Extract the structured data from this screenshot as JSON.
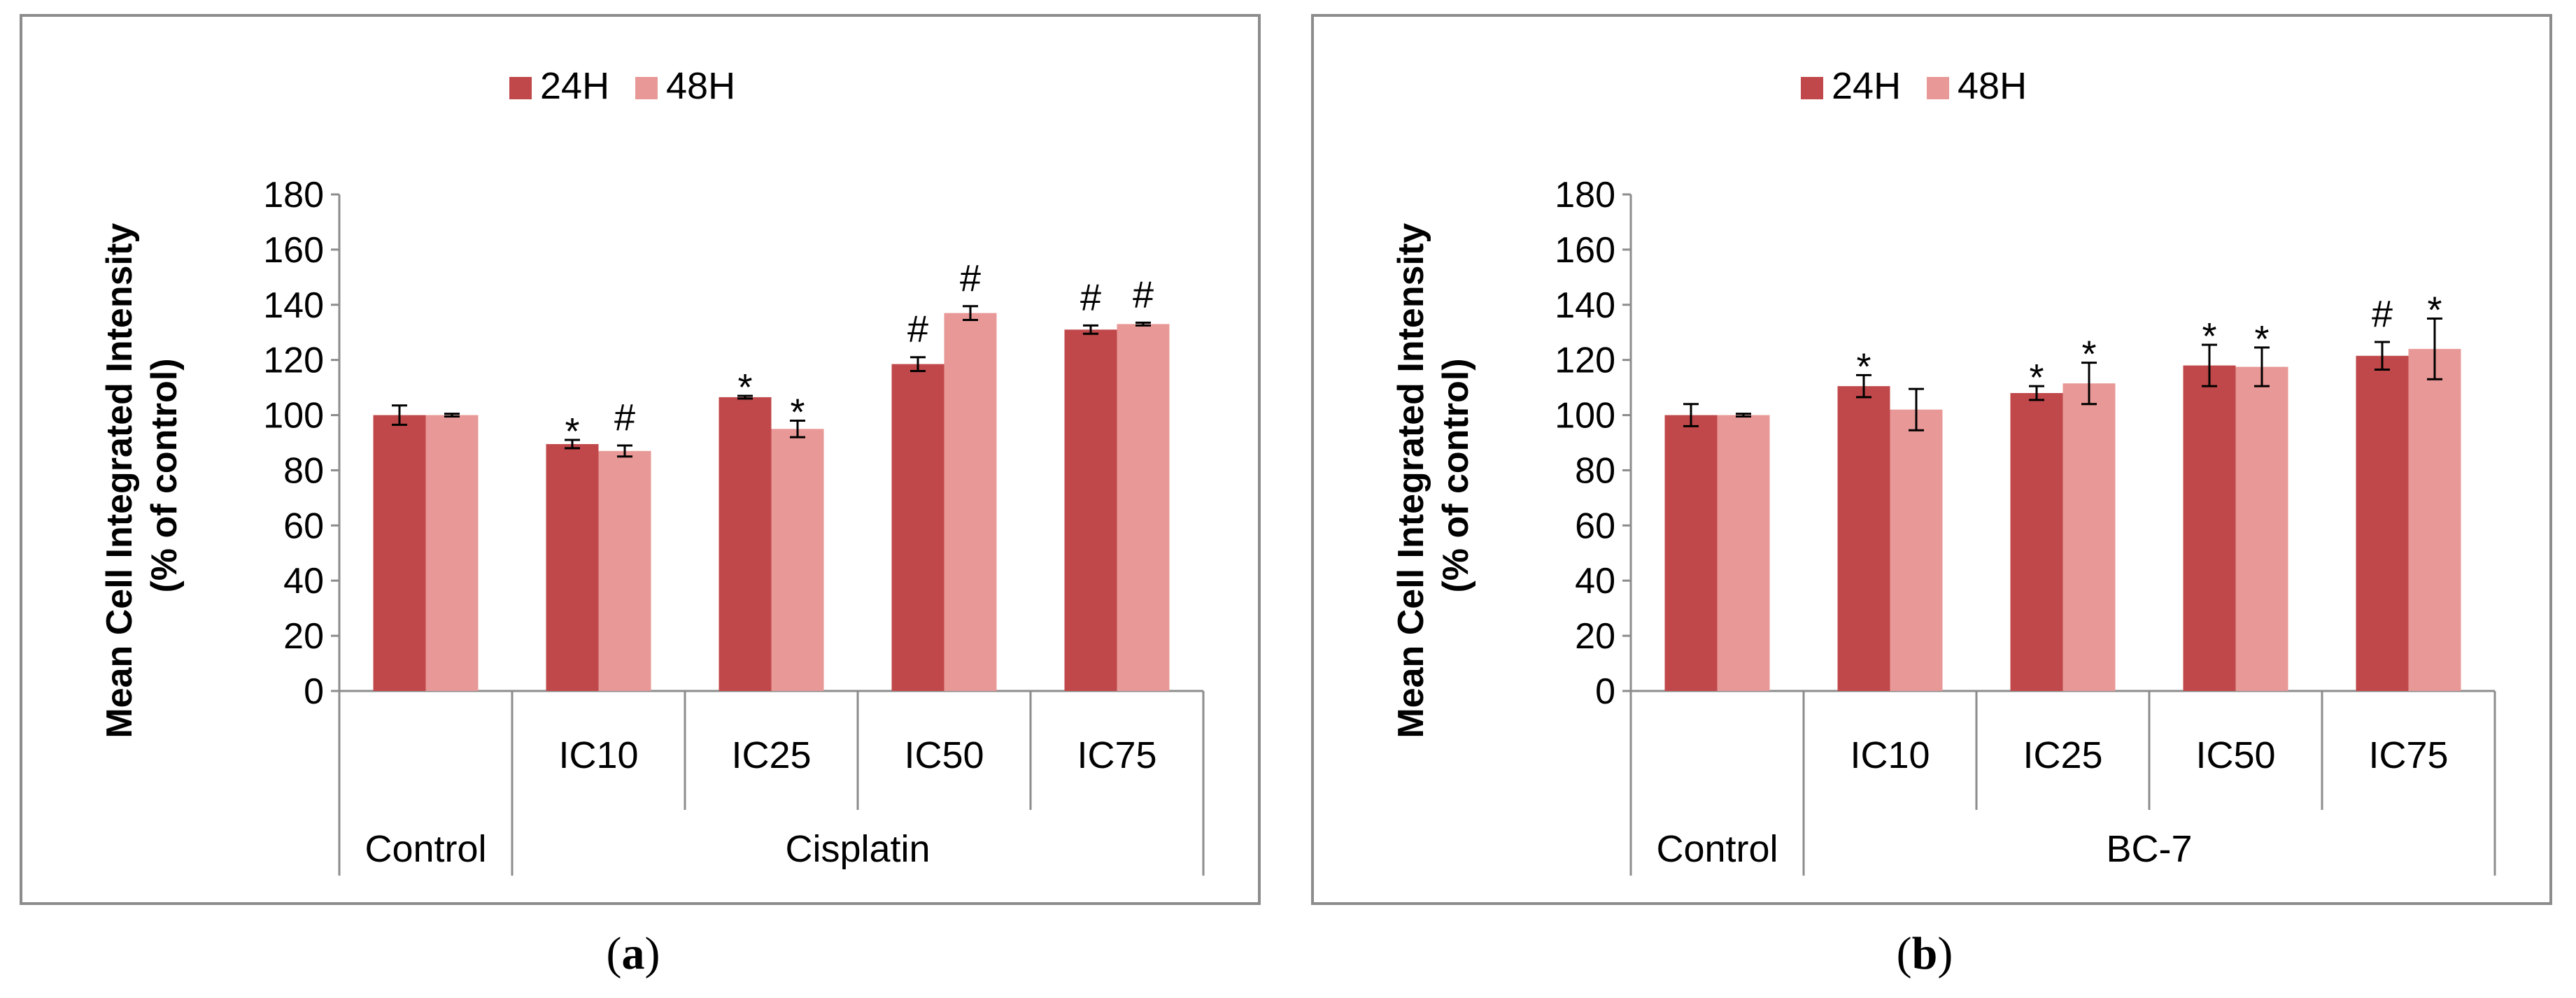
{
  "chart_data": [
    {
      "type": "bar",
      "panel": "a",
      "caption": "(a)",
      "caption_letter": "a",
      "ylabel_line1": "Mean Cell Integrated Intensity",
      "ylabel_line2": "(% of control)",
      "ylim": [
        0,
        180
      ],
      "yticks": [
        0,
        20,
        40,
        60,
        80,
        100,
        120,
        140,
        160,
        180
      ],
      "legend_position": "top-center",
      "categories": [
        "",
        "IC10",
        "IC25",
        "IC50",
        "IC75"
      ],
      "groups": [
        {
          "label": "Control",
          "span": 1
        },
        {
          "label": "Cisplatin",
          "span": 4
        }
      ],
      "series": [
        {
          "name": "24H",
          "color": "#c0484a",
          "values": [
            100,
            89.5,
            106.5,
            118.5,
            131
          ],
          "errors": [
            3.5,
            1.5,
            0.5,
            2.5,
            1.5
          ],
          "markers": [
            "",
            "*",
            "*",
            "#",
            "#"
          ]
        },
        {
          "name": "48H",
          "color": "#e89896",
          "values": [
            100,
            87,
            95,
            137,
            133
          ],
          "errors": [
            0.5,
            2,
            3,
            2.5,
            0.5
          ],
          "markers": [
            "",
            "#",
            "*",
            "#",
            "#"
          ]
        }
      ]
    },
    {
      "type": "bar",
      "panel": "b",
      "caption": "(b)",
      "caption_letter": "b",
      "ylabel_line1": "Mean Cell Integrated Intensity",
      "ylabel_line2": "(% of control)",
      "ylim": [
        0,
        180
      ],
      "yticks": [
        0,
        20,
        40,
        60,
        80,
        100,
        120,
        140,
        160,
        180
      ],
      "legend_position": "top-center",
      "categories": [
        "",
        "IC10",
        "IC25",
        "IC50",
        "IC75"
      ],
      "groups": [
        {
          "label": "Control",
          "span": 1
        },
        {
          "label": "BC-7",
          "span": 4
        }
      ],
      "series": [
        {
          "name": "24H",
          "color": "#c0484a",
          "values": [
            100,
            110.5,
            108,
            118,
            121.5
          ],
          "errors": [
            4,
            4,
            2.5,
            7.5,
            5
          ],
          "markers": [
            "",
            "*",
            "*",
            "*",
            "#"
          ]
        },
        {
          "name": "48H",
          "color": "#e89896",
          "values": [
            100,
            102,
            111.5,
            117.5,
            124
          ],
          "errors": [
            0.5,
            7.5,
            7.5,
            7,
            11
          ],
          "markers": [
            "",
            "",
            "*",
            "*",
            "*"
          ]
        }
      ]
    }
  ]
}
